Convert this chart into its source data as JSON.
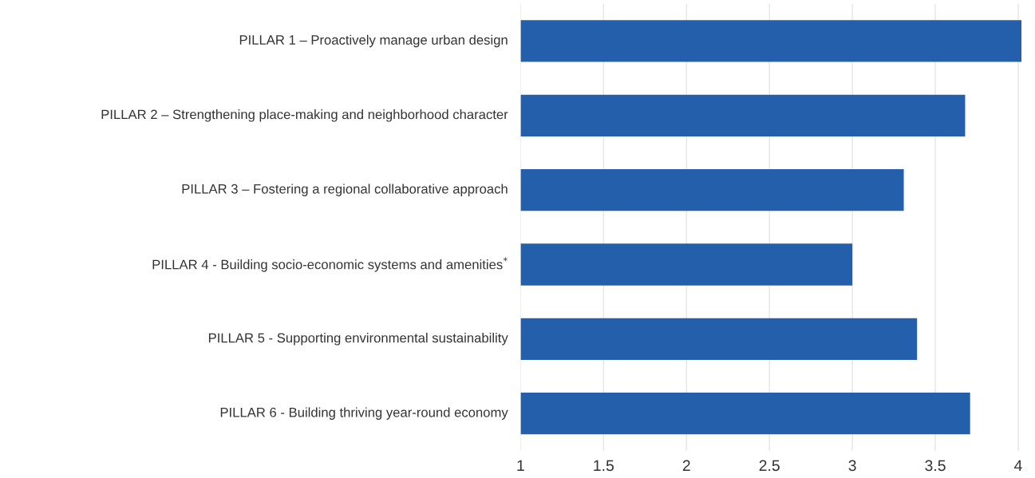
{
  "chart_data": {
    "type": "bar",
    "orientation": "horizontal",
    "categories": [
      "PILLAR 1 – Proactively manage urban design",
      "PILLAR 2 – Strengthening place-making and neighborhood character",
      "PILLAR 3 – Fostering a regional collaborative approach",
      "PILLAR 4 - Building socio-economic systems and amenities$^{*}$",
      "PILLAR 5 - Supporting environmental sustainability",
      "PILLAR 6 - Building thriving year-round economy"
    ],
    "values": [
      4.02,
      3.68,
      3.31,
      3.0,
      3.39,
      3.71
    ],
    "color": "#245fab",
    "xlim": [
      1,
      4.02
    ],
    "xticks": [
      1,
      {
        "value": 1.5,
        "label": "1.5"
      },
      2,
      {
        "value": 2.5,
        "label": "2.5"
      },
      3,
      {
        "value": 3.5,
        "label": "3.5"
      },
      4
    ],
    "grid": "x",
    "legend": false
  }
}
